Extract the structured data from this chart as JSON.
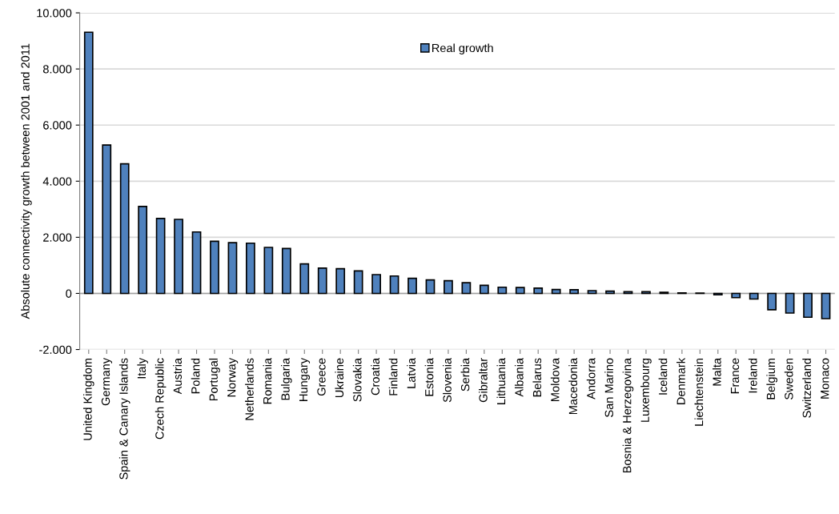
{
  "chart_data": {
    "type": "bar",
    "ylabel": "Absolute connectivity growth between 2001 and 2011",
    "categories": [
      "United Kingdom",
      "Germany",
      "Spain & Canary Islands",
      "Italy",
      "Czech Republic",
      "Austria",
      "Poland",
      "Portugal",
      "Norway",
      "Netherlands",
      "Romania",
      "Bulgaria",
      "Hungary",
      "Greece",
      "Ukraine",
      "Slovakia",
      "Croatia",
      "Finland",
      "Latvia",
      "Estonia",
      "Slovenia",
      "Serbia",
      "Gibraltar",
      "Lithuania",
      "Albania",
      "Belarus",
      "Moldova",
      "Macedonia",
      "Andorra",
      "San Marino",
      "Bosnia & Herzegovina",
      "Luxembourg",
      "Iceland",
      "Denmark",
      "Liechtenstein",
      "Malta",
      "France",
      "Ireland",
      "Belgium",
      "Sweden",
      "Switzerland",
      "Monaco"
    ],
    "series": [
      {
        "name": "Real growth",
        "color": "#4f81bd",
        "values": [
          9310,
          5290,
          4620,
          3100,
          2670,
          2640,
          2190,
          1860,
          1810,
          1790,
          1640,
          1600,
          1050,
          900,
          880,
          800,
          670,
          620,
          540,
          480,
          450,
          380,
          290,
          220,
          210,
          190,
          140,
          130,
          100,
          80,
          60,
          60,
          40,
          20,
          10,
          -50,
          -150,
          -200,
          -580,
          -700,
          -850,
          -900
        ]
      }
    ],
    "ylim": [
      -2000,
      10000
    ],
    "yticks": [
      {
        "value": -2000,
        "label": "-2.000"
      },
      {
        "value": 0,
        "label": "0"
      },
      {
        "value": 2000,
        "label": "2.000"
      },
      {
        "value": 4000,
        "label": "4.000"
      },
      {
        "value": 6000,
        "label": "6.000"
      },
      {
        "value": 8000,
        "label": "8.000"
      },
      {
        "value": 10000,
        "label": "10.000"
      }
    ],
    "grid": "y",
    "legend": "top"
  }
}
